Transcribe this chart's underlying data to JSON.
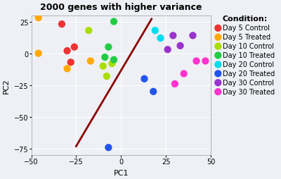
{
  "title": "2000 genes with higher variance",
  "xlabel": "PC1",
  "ylabel": "PC2",
  "xlim": [
    -50,
    50
  ],
  "ylim": [
    -80,
    30
  ],
  "background_color": "#eef0f5",
  "plot_bg_color": "#eef0f5",
  "grid_color": "white",
  "groups": [
    {
      "label": "Day 5 Control",
      "color": "#ee3333",
      "points": [
        [
          -33,
          23
        ],
        [
          -30,
          2
        ],
        [
          -28,
          -7
        ],
        [
          -26,
          5
        ]
      ]
    },
    {
      "label": "Day 5 Treated",
      "color": "#ffaa00",
      "points": [
        [
          -46,
          28
        ],
        [
          -46,
          0
        ],
        [
          -30,
          -12
        ],
        [
          -17,
          -6
        ]
      ]
    },
    {
      "label": "Day 10 Control",
      "color": "#aadd00",
      "points": [
        [
          -18,
          18
        ],
        [
          -10,
          -10
        ],
        [
          -8,
          -18
        ],
        [
          -5,
          -8
        ]
      ]
    },
    {
      "label": "Day 10 Treated",
      "color": "#22cc44",
      "points": [
        [
          -4,
          25
        ],
        [
          -7,
          5
        ],
        [
          -9,
          -3
        ],
        [
          -4,
          -5
        ]
      ]
    },
    {
      "label": "Day 20 Control",
      "color": "#00ddee",
      "points": [
        [
          19,
          18
        ],
        [
          22,
          12
        ]
      ]
    },
    {
      "label": "Day 20 Treated",
      "color": "#2255ee",
      "points": [
        [
          13,
          -20
        ],
        [
          18,
          -30
        ],
        [
          -7,
          -74
        ]
      ]
    },
    {
      "label": "Day 30 Control",
      "color": "#9933cc",
      "points": [
        [
          29,
          14
        ],
        [
          33,
          6
        ],
        [
          40,
          14
        ],
        [
          26,
          3
        ]
      ]
    },
    {
      "label": "Day 30 Treated",
      "color": "#ff33cc",
      "points": [
        [
          35,
          -16
        ],
        [
          42,
          -6
        ],
        [
          47,
          -6
        ],
        [
          30,
          -24
        ]
      ]
    }
  ],
  "line": {
    "x1": -25,
    "y1": -73,
    "x2": 17,
    "y2": 27,
    "color": "#8b0000",
    "linewidth": 2.0
  },
  "title_fontsize": 9,
  "axis_label_fontsize": 8,
  "tick_fontsize": 7,
  "legend_title_fontsize": 8,
  "legend_fontsize": 7,
  "marker_size": 55
}
